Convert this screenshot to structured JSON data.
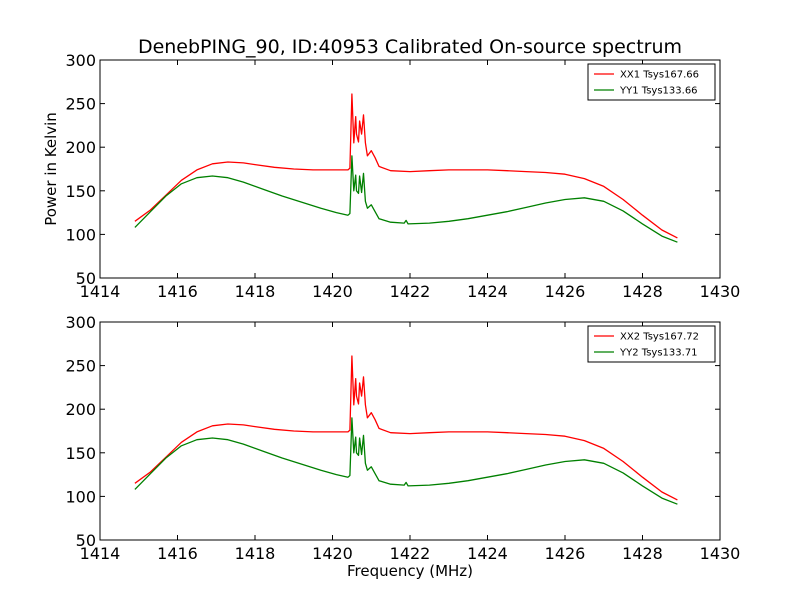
{
  "figure": {
    "title": "DenebPING_90, ID:40953 Calibrated On-source spectrum",
    "ylabel": "Power in Kelvin",
    "xlabel": "Frequency (MHz)"
  },
  "chart_data": [
    {
      "type": "line",
      "title": "DenebPING_90, ID:40953 Calibrated On-source spectrum",
      "ylabel": "Power in Kelvin",
      "xlabel": "",
      "xlim": [
        1414,
        1430
      ],
      "ylim": [
        50,
        300
      ],
      "xticks": [
        "1414",
        "1416",
        "1418",
        "1420",
        "1422",
        "1424",
        "1426",
        "1428",
        "1430"
      ],
      "yticks": [
        "50",
        "100",
        "150",
        "200",
        "250",
        "300"
      ],
      "grid": false,
      "legend_position": "top-right",
      "series": [
        {
          "name": "XX1 Tsys167.66",
          "color": "#ff0000",
          "x": [
            1414.9,
            1415.3,
            1415.7,
            1416.1,
            1416.5,
            1416.9,
            1417.3,
            1417.7,
            1418.0,
            1418.5,
            1419.0,
            1419.5,
            1420.0,
            1420.4,
            1420.45,
            1420.5,
            1420.55,
            1420.6,
            1420.62,
            1420.67,
            1420.7,
            1420.75,
            1420.8,
            1420.85,
            1420.9,
            1421.0,
            1421.1,
            1421.2,
            1421.5,
            1422.0,
            1422.5,
            1423.0,
            1423.5,
            1424.0,
            1424.5,
            1425.0,
            1425.5,
            1426.0,
            1426.5,
            1427.0,
            1427.5,
            1428.0,
            1428.5,
            1428.9
          ],
          "y": [
            115,
            128,
            145,
            162,
            174,
            181,
            183,
            182,
            180,
            177,
            175,
            174,
            174,
            174,
            176,
            261,
            205,
            235,
            215,
            206,
            230,
            215,
            237,
            205,
            190,
            196,
            188,
            178,
            173,
            172,
            173,
            174,
            174,
            174,
            173,
            172,
            171,
            169,
            164,
            155,
            140,
            122,
            105,
            96
          ]
        },
        {
          "name": "YY1 Tsys133.66",
          "color": "#008000",
          "x": [
            1414.9,
            1415.3,
            1415.7,
            1416.1,
            1416.5,
            1416.9,
            1417.3,
            1417.7,
            1418.2,
            1418.7,
            1419.2,
            1419.7,
            1420.1,
            1420.4,
            1420.45,
            1420.5,
            1420.55,
            1420.6,
            1420.62,
            1420.67,
            1420.7,
            1420.75,
            1420.8,
            1420.85,
            1420.9,
            1421.0,
            1421.1,
            1421.2,
            1421.5,
            1421.85,
            1421.9,
            1421.95,
            1422.5,
            1423.0,
            1423.5,
            1424.0,
            1424.5,
            1425.0,
            1425.5,
            1426.0,
            1426.5,
            1427.0,
            1427.5,
            1428.0,
            1428.5,
            1428.9
          ],
          "y": [
            108,
            126,
            144,
            158,
            165,
            167,
            165,
            160,
            152,
            144,
            137,
            130,
            125,
            122,
            124,
            190,
            150,
            168,
            150,
            147,
            167,
            148,
            170,
            138,
            130,
            134,
            126,
            118,
            114,
            113,
            116,
            112,
            113,
            115,
            118,
            122,
            126,
            131,
            136,
            140,
            142,
            138,
            127,
            112,
            98,
            91
          ]
        }
      ]
    },
    {
      "type": "line",
      "title": "",
      "ylabel": "",
      "xlabel": "Frequency (MHz)",
      "xlim": [
        1414,
        1430
      ],
      "ylim": [
        50,
        300
      ],
      "xticks": [
        "1414",
        "1416",
        "1418",
        "1420",
        "1422",
        "1424",
        "1426",
        "1428",
        "1430"
      ],
      "yticks": [
        "50",
        "100",
        "150",
        "200",
        "250",
        "300"
      ],
      "grid": false,
      "legend_position": "top-right",
      "series": [
        {
          "name": "XX2 Tsys167.72",
          "color": "#ff0000",
          "x": [
            1414.9,
            1415.3,
            1415.7,
            1416.1,
            1416.5,
            1416.9,
            1417.3,
            1417.7,
            1418.0,
            1418.5,
            1419.0,
            1419.5,
            1420.0,
            1420.4,
            1420.45,
            1420.5,
            1420.55,
            1420.6,
            1420.62,
            1420.67,
            1420.7,
            1420.75,
            1420.8,
            1420.85,
            1420.9,
            1421.0,
            1421.1,
            1421.2,
            1421.5,
            1422.0,
            1422.5,
            1423.0,
            1423.5,
            1424.0,
            1424.5,
            1425.0,
            1425.5,
            1426.0,
            1426.5,
            1427.0,
            1427.5,
            1428.0,
            1428.5,
            1428.9
          ],
          "y": [
            115,
            128,
            145,
            162,
            174,
            181,
            183,
            182,
            180,
            177,
            175,
            174,
            174,
            174,
            176,
            261,
            205,
            235,
            215,
            206,
            230,
            215,
            237,
            205,
            190,
            196,
            188,
            178,
            173,
            172,
            173,
            174,
            174,
            174,
            173,
            172,
            171,
            169,
            164,
            155,
            140,
            122,
            105,
            96
          ]
        },
        {
          "name": "YY2 Tsys133.71",
          "color": "#008000",
          "x": [
            1414.9,
            1415.3,
            1415.7,
            1416.1,
            1416.5,
            1416.9,
            1417.3,
            1417.7,
            1418.2,
            1418.7,
            1419.2,
            1419.7,
            1420.1,
            1420.4,
            1420.45,
            1420.5,
            1420.55,
            1420.6,
            1420.62,
            1420.67,
            1420.7,
            1420.75,
            1420.8,
            1420.85,
            1420.9,
            1421.0,
            1421.1,
            1421.2,
            1421.5,
            1421.85,
            1421.9,
            1421.95,
            1422.5,
            1423.0,
            1423.5,
            1424.0,
            1424.5,
            1425.0,
            1425.5,
            1426.0,
            1426.5,
            1427.0,
            1427.5,
            1428.0,
            1428.5,
            1428.9
          ],
          "y": [
            108,
            126,
            144,
            158,
            165,
            167,
            165,
            160,
            152,
            144,
            137,
            130,
            125,
            122,
            124,
            190,
            150,
            168,
            150,
            147,
            167,
            148,
            170,
            138,
            130,
            134,
            126,
            118,
            114,
            113,
            116,
            112,
            113,
            115,
            118,
            122,
            126,
            131,
            136,
            140,
            142,
            138,
            127,
            112,
            98,
            91
          ]
        }
      ]
    }
  ]
}
